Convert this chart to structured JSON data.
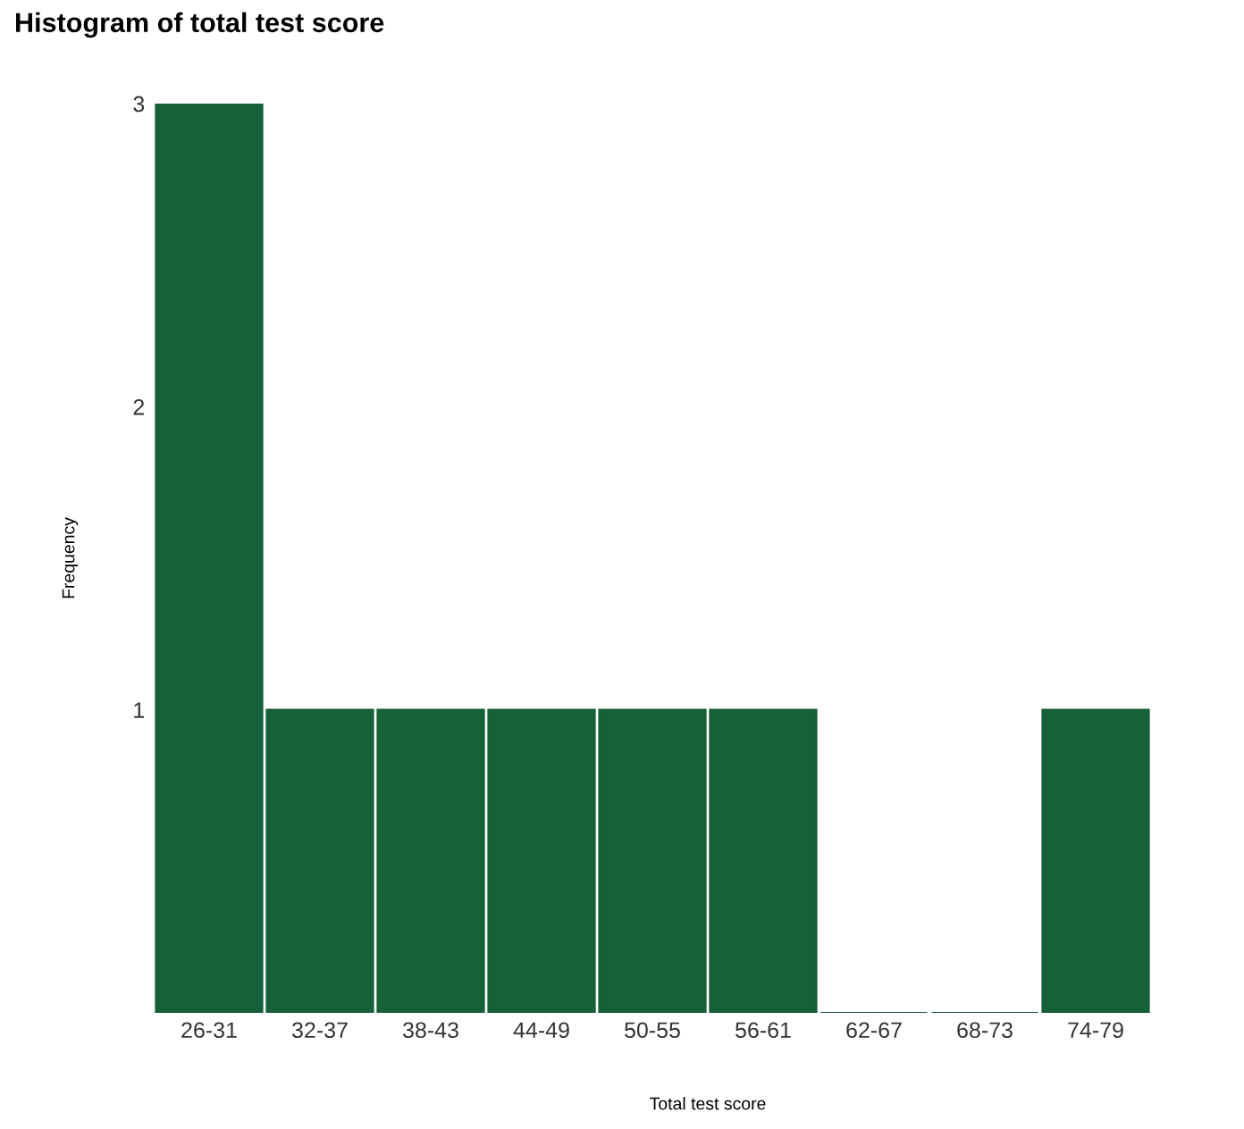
{
  "chart_data": {
    "type": "bar",
    "title": "Histogram of total test score",
    "xlabel": "Total test score",
    "ylabel": "Frequency",
    "categories": [
      "26-31",
      "32-37",
      "38-43",
      "44-49",
      "50-55",
      "56-61",
      "62-67",
      "68-73",
      "74-79"
    ],
    "values": [
      3,
      1,
      1,
      1,
      1,
      1,
      0,
      0,
      1
    ],
    "color": "#17603a",
    "ylim": [
      0,
      3
    ],
    "yticks": [
      1,
      2,
      3
    ],
    "grid": false,
    "legend": false
  }
}
